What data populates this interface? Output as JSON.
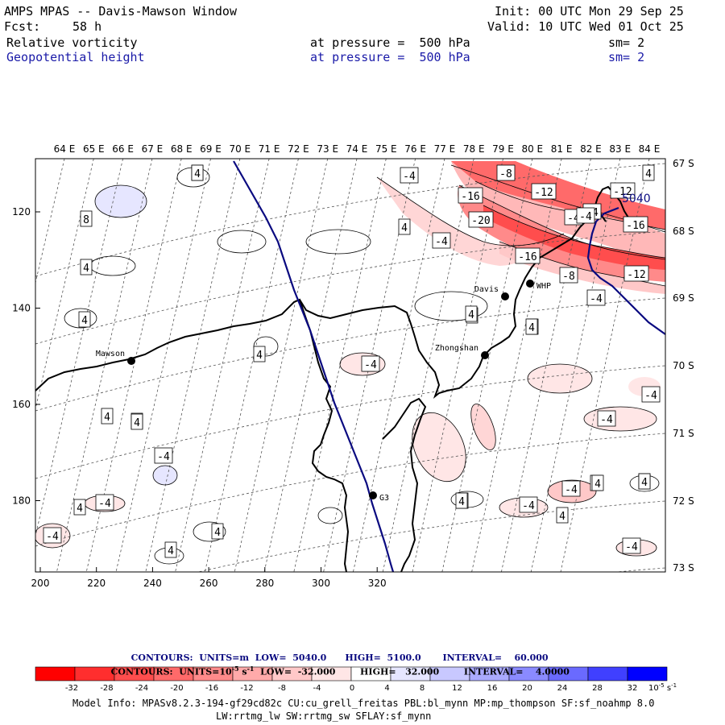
{
  "header": {
    "title": "AMPS MPAS -- Davis-Mawson Window",
    "init": "Init: 00 UTC Mon 29 Sep 25",
    "fcst_label": "Fcst:",
    "fcst_value": "58 h",
    "valid": "Valid: 10 UTC Wed 01 Oct 25",
    "field1": {
      "name": "Relative vorticity",
      "pressure": "at pressure =  500 hPa",
      "sm": "sm= 2"
    },
    "field2": {
      "name": "Geopotential height",
      "pressure": "at pressure =  500 hPa",
      "sm": "sm= 2"
    }
  },
  "map": {
    "lon_labels": [
      "64 E",
      "65 E",
      "66 E",
      "67 E",
      "68 E",
      "69 E",
      "70 E",
      "71 E",
      "72 E",
      "73 E",
      "74 E",
      "75 E",
      "76 E",
      "77 E",
      "78 E",
      "79 E",
      "80 E",
      "81 E",
      "82 E",
      "83 E",
      "84 E"
    ],
    "lat_labels": [
      "67 S",
      "68 S",
      "69 S",
      "70 S",
      "71 S",
      "72 S",
      "73 S"
    ],
    "x_ticks": [
      "200",
      "220",
      "240",
      "260",
      "280",
      "300",
      "320"
    ],
    "y_ticks": [
      "120",
      "140",
      "160",
      "180"
    ],
    "stations": [
      {
        "name": "Mawson"
      },
      {
        "name": "Davis"
      },
      {
        "name": "WHP"
      },
      {
        "name": "Zhongshan"
      },
      {
        "name": "G3"
      }
    ],
    "height_label": "5040",
    "contour_boxes": [
      "4",
      "8",
      "4",
      "4",
      "4",
      "4",
      "4",
      "4",
      "4",
      "-4",
      "4",
      "-4",
      "-4",
      "4",
      "4",
      "-4",
      "4",
      "4",
      "-4",
      "-4",
      "-8",
      "-12",
      "-16",
      "-20",
      "-16",
      "-12",
      "-16",
      "-8",
      "-12",
      "-4",
      "-4",
      "-4",
      "4",
      "4",
      "4",
      "-4",
      "-4",
      "4",
      "-4",
      "4",
      "4",
      "4",
      "-4",
      "4",
      "-4",
      "-4",
      "4",
      "4",
      "4",
      "4"
    ]
  },
  "contour_info": {
    "line1": {
      "label": "CONTOURS:  UNITS=m",
      "low": "LOW=  5040.0",
      "high": "HIGH=  5100.0",
      "interval": "INTERVAL=    60.000"
    },
    "line2": {
      "label": "CONTOURS:  UNITS=10",
      "sup": "-5",
      "unit_suffix": " s",
      "sup2": "-1",
      "low": "LOW=  -32.000",
      "high": "HIGH=   32.000",
      "interval": "INTERVAL=    4.0000"
    }
  },
  "colorbar": {
    "labels": [
      "-32",
      "-28",
      "-24",
      "-20",
      "-16",
      "-12",
      "-8",
      "-4",
      "0",
      "4",
      "8",
      "12",
      "16",
      "20",
      "24",
      "28",
      "32"
    ],
    "units": "10",
    "units_sup": "-5",
    "units_suffix": " s",
    "units_sup2": "-1",
    "colors": [
      "#ff0000",
      "#ff2e2e",
      "#ff4d4d",
      "#ff6a6a",
      "#ff8a8a",
      "#ffaaaa",
      "#ffc8c8",
      "#ffe6e6",
      "#ffffff",
      "#ffffff",
      "#e6e6ff",
      "#c8c8ff",
      "#aaaaff",
      "#8a8aff",
      "#6a6aff",
      "#4040ff",
      "#0000ff"
    ]
  },
  "footer": {
    "line1": "Model Info: MPASv8.2.3-194-gf29cd82c CU:cu_grell_freitas PBL:bl_mynn MP:mp_thompson SF:sf_noahmp 8.0",
    "line2": "LW:rrtmg_lw SW:rrtmg_sw SFLAY:sf_mynn"
  }
}
